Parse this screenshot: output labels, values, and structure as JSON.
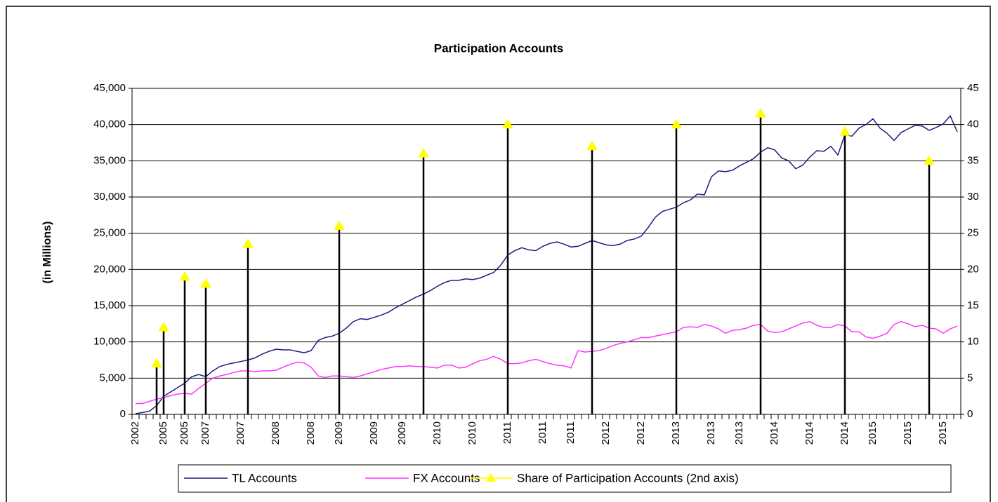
{
  "chart_data": {
    "type": "line",
    "title": "Participation Accounts",
    "ylabel": "(in Millions)",
    "categories": [
      "2002",
      null,
      null,
      null,
      "2005",
      null,
      null,
      "2005",
      null,
      null,
      "2007",
      null,
      null,
      null,
      null,
      "2007",
      null,
      null,
      null,
      null,
      "2008",
      null,
      null,
      null,
      null,
      "2008",
      null,
      null,
      null,
      "2009",
      null,
      null,
      null,
      null,
      "2009",
      null,
      null,
      null,
      "2009",
      null,
      null,
      null,
      null,
      "2010",
      null,
      null,
      null,
      null,
      "2010",
      null,
      null,
      null,
      null,
      "2011",
      null,
      null,
      null,
      null,
      "2011",
      null,
      null,
      null,
      "2011",
      null,
      null,
      null,
      null,
      "2012",
      null,
      null,
      null,
      null,
      "2012",
      null,
      null,
      null,
      null,
      "2013",
      null,
      null,
      null,
      null,
      "2013",
      null,
      null,
      null,
      "2013",
      null,
      null,
      null,
      null,
      "2014",
      null,
      null,
      null,
      null,
      "2014",
      null,
      null,
      null,
      null,
      "2014",
      null,
      null,
      null,
      "2015",
      null,
      null,
      null,
      null,
      "2015",
      null,
      null,
      null,
      null,
      "2015",
      null,
      null
    ],
    "series": [
      {
        "name": "TL Accounts",
        "color": "#1c1c80",
        "values": [
          100,
          250,
          450,
          1200,
          2500,
          3100,
          3700,
          4300,
          5200,
          5500,
          5200,
          6000,
          6600,
          6900,
          7100,
          7300,
          7500,
          7800,
          8300,
          8700,
          9000,
          8900,
          8900,
          8700,
          8500,
          8800,
          10200,
          10600,
          10800,
          11200,
          11900,
          12800,
          13200,
          13100,
          13400,
          13700,
          14100,
          14700,
          15200,
          15700,
          16200,
          16600,
          17100,
          17700,
          18200,
          18500,
          18500,
          18700,
          18600,
          18800,
          19200,
          19600,
          20600,
          22000,
          22600,
          23000,
          22700,
          22600,
          23200,
          23600,
          23800,
          23500,
          23100,
          23200,
          23600,
          24000,
          23700,
          23400,
          23300,
          23500,
          24000,
          24200,
          24600,
          25800,
          27200,
          28000,
          28300,
          28600,
          29200,
          29600,
          30400,
          30300,
          32800,
          33600,
          33500,
          33700,
          34300,
          34800,
          35300,
          36200,
          36800,
          36500,
          35400,
          35000,
          33900,
          34400,
          35500,
          36400,
          36300,
          37000,
          35800,
          38600,
          38400,
          39500,
          40000,
          40800,
          39500,
          38800,
          37800,
          38900,
          39400,
          39900,
          39800,
          39200,
          39600,
          40100,
          41200,
          39000
        ]
      },
      {
        "name": "FX Accounts",
        "color": "#ff33ff",
        "values": [
          1500,
          1500,
          1800,
          2100,
          2300,
          2600,
          2800,
          2900,
          2800,
          3600,
          4300,
          5000,
          5300,
          5500,
          5800,
          6000,
          6000,
          5900,
          6000,
          6000,
          6100,
          6500,
          6900,
          7200,
          7100,
          6500,
          5300,
          5100,
          5300,
          5300,
          5200,
          5100,
          5300,
          5600,
          5900,
          6200,
          6400,
          6600,
          6600,
          6700,
          6600,
          6600,
          6500,
          6400,
          6800,
          6800,
          6400,
          6500,
          7000,
          7400,
          7600,
          8000,
          7600,
          7000,
          7000,
          7100,
          7400,
          7600,
          7300,
          7000,
          6800,
          6700,
          6400,
          8800,
          8600,
          8700,
          8800,
          9100,
          9500,
          9800,
          10000,
          10300,
          10600,
          10600,
          10800,
          11000,
          11200,
          11400,
          12000,
          12100,
          12000,
          12400,
          12200,
          11800,
          11200,
          11600,
          11700,
          11900,
          12300,
          12400,
          11500,
          11300,
          11400,
          11800,
          12200,
          12600,
          12800,
          12300,
          12000,
          12000,
          12400,
          12200,
          11400,
          11400,
          10700,
          10500,
          10800,
          11200,
          12400,
          12800,
          12500,
          12100,
          12300,
          11900,
          11800,
          11200,
          11800,
          12200
        ]
      },
      {
        "name": "Share of Participation Accounts (2nd axis)",
        "color": "#ffff00",
        "drop_color": "#000000",
        "axis": "y2",
        "values": [
          null,
          null,
          null,
          7,
          12,
          null,
          null,
          19,
          null,
          null,
          18,
          null,
          null,
          null,
          null,
          null,
          23.5,
          null,
          null,
          null,
          null,
          null,
          null,
          null,
          null,
          null,
          null,
          null,
          null,
          26,
          null,
          null,
          null,
          null,
          null,
          null,
          null,
          null,
          null,
          null,
          null,
          36,
          null,
          null,
          null,
          null,
          null,
          null,
          null,
          null,
          null,
          null,
          null,
          40,
          null,
          null,
          null,
          null,
          null,
          null,
          null,
          null,
          null,
          null,
          null,
          37,
          null,
          null,
          null,
          null,
          null,
          null,
          null,
          null,
          null,
          null,
          null,
          40,
          null,
          null,
          null,
          null,
          null,
          null,
          null,
          null,
          null,
          null,
          null,
          41.5,
          null,
          null,
          null,
          null,
          null,
          null,
          null,
          null,
          null,
          null,
          null,
          39,
          null,
          null,
          null,
          null,
          null,
          null,
          null,
          null,
          null,
          null,
          null,
          35,
          null,
          null,
          null,
          null
        ]
      }
    ],
    "ylim": [
      0,
      45000
    ],
    "yticks": [
      0,
      {
        "value": 5000,
        "label": "5,000"
      },
      {
        "value": 10000,
        "label": "10,000"
      },
      {
        "value": 15000,
        "label": "15,000"
      },
      {
        "value": 20000,
        "label": "20,000"
      },
      {
        "value": 25000,
        "label": "25,000"
      },
      {
        "value": 30000,
        "label": "30,000"
      },
      {
        "value": 35000,
        "label": "35,000"
      },
      {
        "value": 40000,
        "label": "40,000"
      },
      {
        "value": 45000,
        "label": "45,000"
      }
    ],
    "y2lim": [
      0,
      45
    ],
    "y2ticks": [
      0,
      5,
      10,
      15,
      20,
      25,
      30,
      35,
      40,
      45
    ],
    "grid": true,
    "legend": "bottom"
  }
}
